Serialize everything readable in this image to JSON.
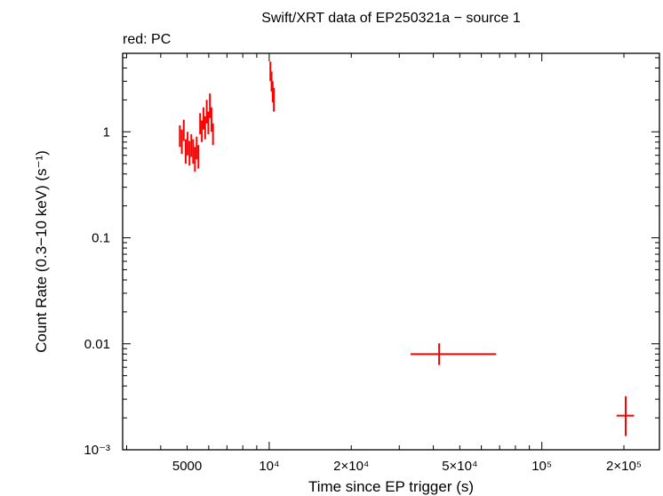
{
  "chart_data": {
    "type": "scatter",
    "title": "Swift/XRT data of EP250321a − source 1",
    "subtitle": "red: PC",
    "xlabel": "Time since EP trigger (s)",
    "ylabel": "Count Rate (0.3−10 keV) (s⁻¹)",
    "xscale": "log",
    "yscale": "log",
    "xlim": [
      2900,
      270000
    ],
    "ylim": [
      0.001,
      5.5
    ],
    "x_tick_labels": [
      "5000",
      "10⁴",
      "2×10⁴",
      "5×10⁴",
      "10⁵",
      "2×10⁵"
    ],
    "x_tick_values": [
      5000,
      10000,
      20000,
      50000,
      100000,
      200000
    ],
    "y_tick_labels": [
      "10⁻³",
      "0.01",
      "0.1",
      "1"
    ],
    "y_tick_values": [
      0.001,
      0.01,
      0.1,
      1
    ],
    "grid": false,
    "series": [
      {
        "color": "#ff0000",
        "mode": "PC",
        "points": [
          {
            "x": 4700,
            "xerr": [
              40,
              40
            ],
            "y": 0.9,
            "yerr": [
              0.72,
              1.15
            ]
          },
          {
            "x": 4780,
            "xerr": [
              40,
              40
            ],
            "y": 0.8,
            "yerr": [
              0.62,
              1.05
            ]
          },
          {
            "x": 4860,
            "xerr": [
              40,
              40
            ],
            "y": 1.0,
            "yerr": [
              0.82,
              1.3
            ]
          },
          {
            "x": 4940,
            "xerr": [
              40,
              40
            ],
            "y": 0.65,
            "yerr": [
              0.5,
              0.85
            ]
          },
          {
            "x": 5020,
            "xerr": [
              40,
              40
            ],
            "y": 0.8,
            "yerr": [
              0.6,
              1.0
            ]
          },
          {
            "x": 5100,
            "xerr": [
              40,
              40
            ],
            "y": 0.62,
            "yerr": [
              0.48,
              0.82
            ]
          },
          {
            "x": 5180,
            "xerr": [
              40,
              40
            ],
            "y": 0.75,
            "yerr": [
              0.58,
              0.95
            ]
          },
          {
            "x": 5260,
            "xerr": [
              40,
              40
            ],
            "y": 0.65,
            "yerr": [
              0.5,
              0.85
            ]
          },
          {
            "x": 5340,
            "xerr": [
              40,
              40
            ],
            "y": 0.55,
            "yerr": [
              0.42,
              0.72
            ]
          },
          {
            "x": 5420,
            "xerr": [
              40,
              40
            ],
            "y": 0.7,
            "yerr": [
              0.55,
              0.9
            ]
          },
          {
            "x": 5500,
            "xerr": [
              40,
              40
            ],
            "y": 0.58,
            "yerr": [
              0.45,
              0.75
            ]
          },
          {
            "x": 5580,
            "xerr": [
              40,
              40
            ],
            "y": 1.2,
            "yerr": [
              0.95,
              1.5
            ]
          },
          {
            "x": 5660,
            "xerr": [
              40,
              40
            ],
            "y": 1.0,
            "yerr": [
              0.8,
              1.28
            ]
          },
          {
            "x": 5740,
            "xerr": [
              40,
              40
            ],
            "y": 1.35,
            "yerr": [
              1.05,
              1.7
            ]
          },
          {
            "x": 5820,
            "xerr": [
              40,
              40
            ],
            "y": 1.1,
            "yerr": [
              0.85,
              1.4
            ]
          },
          {
            "x": 5900,
            "xerr": [
              40,
              40
            ],
            "y": 1.55,
            "yerr": [
              1.2,
              2.0
            ]
          },
          {
            "x": 5980,
            "xerr": [
              40,
              40
            ],
            "y": 1.2,
            "yerr": [
              0.95,
              1.55
            ]
          },
          {
            "x": 6060,
            "xerr": [
              40,
              40
            ],
            "y": 1.75,
            "yerr": [
              1.35,
              2.3
            ]
          },
          {
            "x": 6140,
            "xerr": [
              40,
              40
            ],
            "y": 1.3,
            "yerr": [
              1.0,
              1.7
            ]
          },
          {
            "x": 6220,
            "xerr": [
              40,
              40
            ],
            "y": 0.95,
            "yerr": [
              0.75,
              1.2
            ]
          },
          {
            "x": 10100,
            "xerr": [
              120,
              120
            ],
            "y": 3.8,
            "yerr": [
              3.0,
              4.6
            ]
          },
          {
            "x": 10200,
            "xerr": [
              120,
              120
            ],
            "y": 3.0,
            "yerr": [
              2.4,
              3.7
            ]
          },
          {
            "x": 10300,
            "xerr": [
              120,
              120
            ],
            "y": 2.4,
            "yerr": [
              1.9,
              3.0
            ]
          },
          {
            "x": 10400,
            "xerr": [
              120,
              120
            ],
            "y": 2.0,
            "yerr": [
              1.55,
              2.6
            ]
          },
          {
            "x": 42000,
            "xerr": [
              33000,
              68000
            ],
            "y": 0.008,
            "yerr": [
              0.0063,
              0.0101
            ]
          },
          {
            "x": 203000,
            "xerr": [
              188000,
              218000
            ],
            "y": 0.0021,
            "yerr": [
              0.00135,
              0.0032
            ]
          }
        ]
      }
    ]
  }
}
